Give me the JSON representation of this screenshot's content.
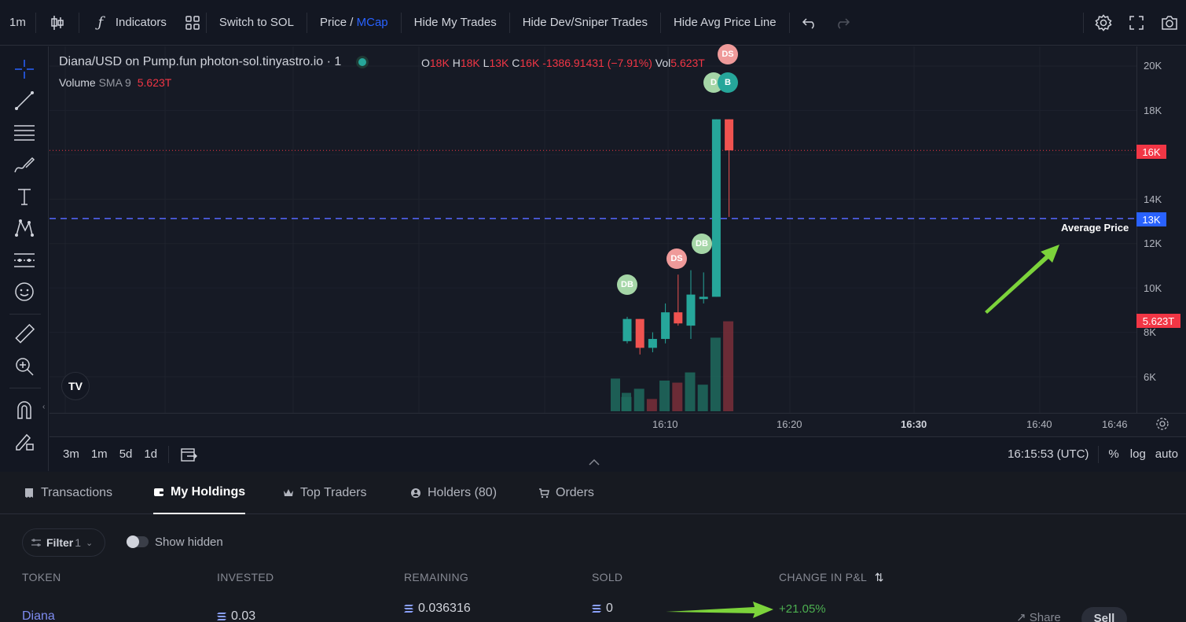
{
  "toolbar": {
    "interval": "1m",
    "indicators": "Indicators",
    "switch_currency": "Switch to SOL",
    "price_label": "Price",
    "slash": "/",
    "mcap_label": "MCap",
    "hide_my_trades": "Hide My Trades",
    "hide_dev_sniper": "Hide Dev/Sniper Trades",
    "hide_avg_price": "Hide Avg Price Line"
  },
  "legend": {
    "symbol": "Diana/USD on Pump.fun photon-sol.tinyastro.io · 1",
    "o_label": "O",
    "o_value": "18K",
    "h_label": "H",
    "h_value": "18K",
    "l_label": "L",
    "l_value": "13K",
    "c_label": "C",
    "c_value": "16K",
    "change": "-1386.91431 (−7.91%)",
    "vol_label": "Vol",
    "vol_value": "5.623T",
    "volume_name": "Volume",
    "volume_sma": "SMA 9",
    "volume_value": "5.623T"
  },
  "chart_data": {
    "type": "candlestick",
    "y_ticks": [
      "20K",
      "18K",
      "14K",
      "12K",
      "10K",
      "8K",
      "6K"
    ],
    "x_ticks": [
      "16:10",
      "16:20",
      "16:30",
      "16:40",
      "16:46"
    ],
    "last_price_tag": "16K",
    "avg_price_tag": "13K",
    "volume_tag": "5.623T",
    "avg_price_label": "Average Price",
    "markers": [
      "DS",
      "D",
      "B",
      "DB",
      "DS",
      "DB"
    ],
    "candles": [
      {
        "o": 7600,
        "h": 8700,
        "l": 7500,
        "c": 8600
      },
      {
        "o": 8600,
        "h": 8600,
        "l": 7000,
        "c": 7300
      },
      {
        "o": 7300,
        "h": 8000,
        "l": 7100,
        "c": 7700
      },
      {
        "o": 7700,
        "h": 9300,
        "l": 7500,
        "c": 8900
      },
      {
        "o": 8900,
        "h": 10600,
        "l": 8300,
        "c": 8400
      },
      {
        "o": 8300,
        "h": 10800,
        "l": 7700,
        "c": 9700
      },
      {
        "o": 9500,
        "h": 10700,
        "l": 9300,
        "c": 9600
      },
      {
        "o": 9600,
        "h": 17600,
        "l": 9600,
        "c": 17600
      },
      {
        "o": 17600,
        "h": 17600,
        "l": 13200,
        "c": 16200
      }
    ]
  },
  "timebar": {
    "ranges": [
      "3m",
      "1m",
      "5d",
      "1d"
    ],
    "clock": "16:15:53 (UTC)",
    "percent": "%",
    "log": "log",
    "auto": "auto"
  },
  "tabs": [
    "Transactions",
    "My Holdings",
    "Top Traders",
    "Holders (80)",
    "Orders"
  ],
  "filters": {
    "filter_label": "Filter",
    "filter_count": "1",
    "show_hidden": "Show hidden"
  },
  "table": {
    "headers": [
      "TOKEN",
      "INVESTED",
      "REMAINING",
      "SOLD",
      "CHANGE IN P&L"
    ],
    "row": {
      "token": "Diana",
      "invested": "0.03",
      "remaining": "0.036316",
      "sold": "0",
      "pnl": "+21.05%",
      "share": "Share",
      "sell": "Sell"
    }
  },
  "colors": {
    "up": "#26a69a",
    "down": "#ef5350",
    "accent": "#2962ff",
    "pnl_positive": "#4caf50",
    "annotation_arrow": "#7cd33b"
  }
}
